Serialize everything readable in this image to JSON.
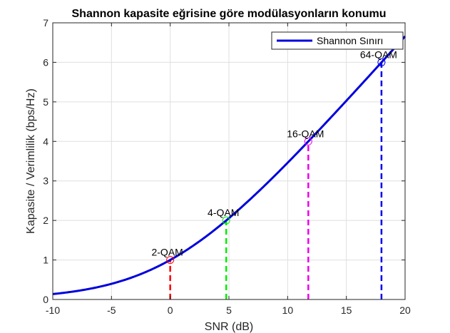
{
  "chart_data": {
    "type": "line",
    "title": "Shannon kapasite eğrisine göre modülasyonların konumu",
    "xlabel": "SNR (dB)",
    "ylabel": "Kapasite / Verimlilik (bps/Hz)",
    "xlim": [
      -10,
      20
    ],
    "ylim": [
      0,
      7
    ],
    "xticks": [
      -10,
      -5,
      0,
      5,
      10,
      15,
      20
    ],
    "yticks": [
      0,
      1,
      2,
      3,
      4,
      5,
      6,
      7
    ],
    "grid": true,
    "legend_position": "top-right",
    "series": [
      {
        "name": "Shannon Sınırı",
        "color": "#0000dd",
        "function": "log2(1 + 10^(SNR/10))"
      }
    ],
    "modulations": [
      {
        "label": "2-QAM",
        "snr_db": 0,
        "efficiency": 1,
        "color": "#ff0000"
      },
      {
        "label": "4-QAM",
        "snr_db": 4.77,
        "efficiency": 2,
        "color": "#00ee00"
      },
      {
        "label": "16-QAM",
        "snr_db": 11.76,
        "efficiency": 4,
        "color": "#ee00ee"
      },
      {
        "label": "64-QAM",
        "snr_db": 17.99,
        "efficiency": 6,
        "color": "#0000ee"
      }
    ]
  }
}
